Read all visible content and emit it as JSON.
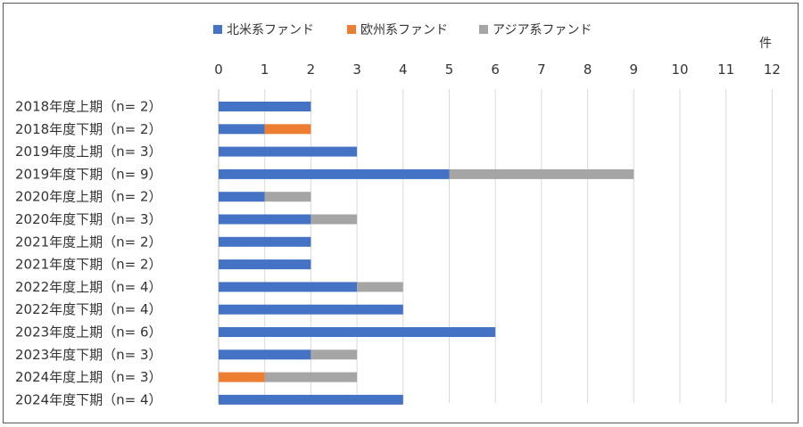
{
  "chart_data": {
    "type": "bar",
    "orientation": "horizontal",
    "stacked": true,
    "categories": [
      "2018年度上期（n=  2）",
      "2018年度下期（n=  2）",
      "2019年度上期（n=  3）",
      "2019年度下期（n=  9）",
      "2020年度上期（n=  2）",
      "2020年度下期（n=  3）",
      "2021年度上期（n=  2）",
      "2021年度下期（n=  2）",
      "2022年度上期（n=  4）",
      "2022年度下期（n=  4）",
      "2023年度上期（n=  6）",
      "2023年度下期（n=  3）",
      "2024年度上期（n=  3）",
      "2024年度下期（n=  4）"
    ],
    "series": [
      {
        "name": "北米系ファンド",
        "color": "#4472C4",
        "values": [
          2,
          1,
          3,
          5,
          1,
          2,
          2,
          2,
          3,
          4,
          6,
          2,
          0,
          4
        ]
      },
      {
        "name": "欧州系ファンド",
        "color": "#ED7D31",
        "values": [
          0,
          1,
          0,
          0,
          0,
          0,
          0,
          0,
          0,
          0,
          0,
          0,
          1,
          0
        ]
      },
      {
        "name": "アジア系ファンド",
        "color": "#A5A5A5",
        "values": [
          0,
          0,
          0,
          4,
          1,
          1,
          0,
          0,
          1,
          0,
          0,
          1,
          2,
          0
        ]
      }
    ],
    "xlim": [
      0,
      12
    ],
    "xticks": [
      "0",
      "1",
      "2",
      "3",
      "4",
      "5",
      "6",
      "7",
      "8",
      "9",
      "10",
      "11",
      "12"
    ],
    "xunit": "件",
    "grid": true,
    "legend": "top"
  }
}
